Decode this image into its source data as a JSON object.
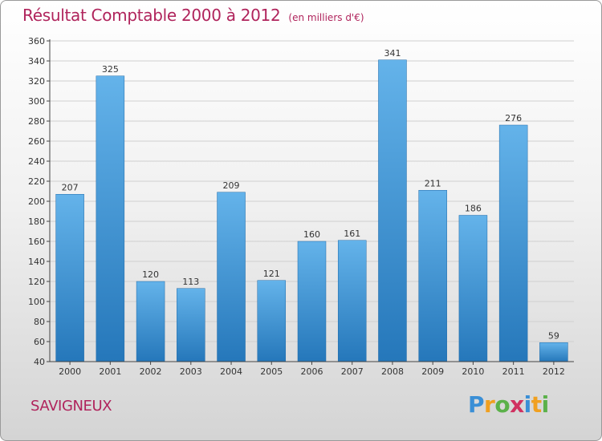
{
  "title": "Résultat Comptable 2000 à 2012",
  "subtitle": "(en milliers d'€)",
  "city": "SAVIGNEUX",
  "logo": {
    "letters": [
      "P",
      "r",
      "o",
      "x",
      "i",
      "t",
      "i"
    ],
    "colors": [
      "#3a8fd6",
      "#f0a020",
      "#5bb14a",
      "#d03060",
      "#3a8fd6",
      "#f0a020",
      "#5bb14a"
    ]
  },
  "colors": {
    "title": "#b0245c",
    "bar_light": "#64b3ea",
    "bar_dark": "#2577ba",
    "grid": "#cfcfcf",
    "axis": "#444444"
  },
  "chart_data": {
    "type": "bar",
    "title": "Résultat Comptable 2000 à 2012",
    "subtitle": "(en milliers d'€)",
    "categories": [
      "2000",
      "2001",
      "2002",
      "2003",
      "2004",
      "2005",
      "2006",
      "2007",
      "2008",
      "2009",
      "2010",
      "2011",
      "2012"
    ],
    "values": [
      207,
      325,
      120,
      113,
      209,
      121,
      160,
      161,
      341,
      211,
      186,
      276,
      59
    ],
    "ylim": [
      40,
      360
    ],
    "yticks": [
      40,
      60,
      80,
      100,
      120,
      140,
      160,
      180,
      200,
      220,
      240,
      260,
      280,
      300,
      320,
      340,
      360
    ],
    "grid": true,
    "data_labels": true
  }
}
